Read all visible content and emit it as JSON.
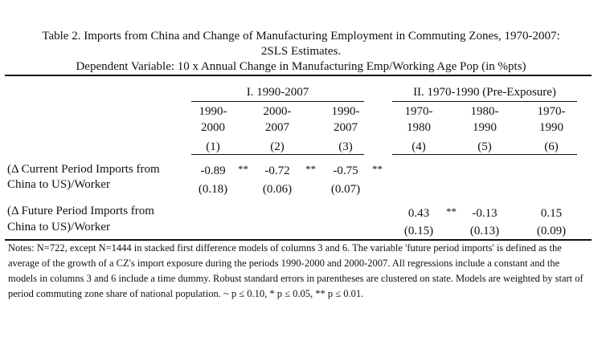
{
  "title": {
    "line1": "Table 2. Imports from China and Change of Manufacturing Employment in Commuting Zones, 1970-2007:",
    "line2": "2SLS Estimates.",
    "line3": "Dependent Variable: 10 x Annual Change in Manufacturing Emp/Working Age Pop (in %pts)"
  },
  "panels": {
    "p1": "I. 1990-2007",
    "p2": "II. 1970-1990 (Pre-Exposure)"
  },
  "columns": [
    {
      "top": "1990-",
      "bottom": "2000",
      "num": "(1)"
    },
    {
      "top": "2000-",
      "bottom": "2007",
      "num": "(2)"
    },
    {
      "top": "1990-",
      "bottom": "2007",
      "num": "(3)"
    },
    {
      "top": "1970-",
      "bottom": "1980",
      "num": "(4)"
    },
    {
      "top": "1980-",
      "bottom": "1990",
      "num": "(5)"
    },
    {
      "top": "1970-",
      "bottom": "1990",
      "num": "(6)"
    }
  ],
  "rows": [
    {
      "label1": "(Δ Current Period Imports from",
      "label2": "China to US)/Worker",
      "coef": [
        "-0.89",
        "-0.72",
        "-0.75"
      ],
      "stars": [
        "**",
        "**",
        "**"
      ],
      "se": [
        "(0.18)",
        "(0.06)",
        "(0.07)"
      ]
    },
    {
      "label1": "(Δ Future Period Imports from",
      "label2": "China to US)/Worker",
      "coef": [
        "0.43",
        "-0.13",
        "0.15"
      ],
      "stars": [
        "**"
      ],
      "se": [
        "(0.15)",
        "(0.13)",
        "(0.09)"
      ]
    }
  ],
  "notes": "Notes: N=722, except N=1444 in stacked first difference models of columns 3 and 6. The variable 'future period imports' is defined as the average of the growth of a CZ's import exposure during the periods 1990-2000 and 2000-2007. All regressions include a constant and the models in columns 3 and 6 include a time dummy. Robust standard errors in parentheses are clustered on state. Models are weighted by start of period commuting zone share of national population.  ~ p ≤ 0.10, * p ≤ 0.05, ** p ≤ 0.01."
}
